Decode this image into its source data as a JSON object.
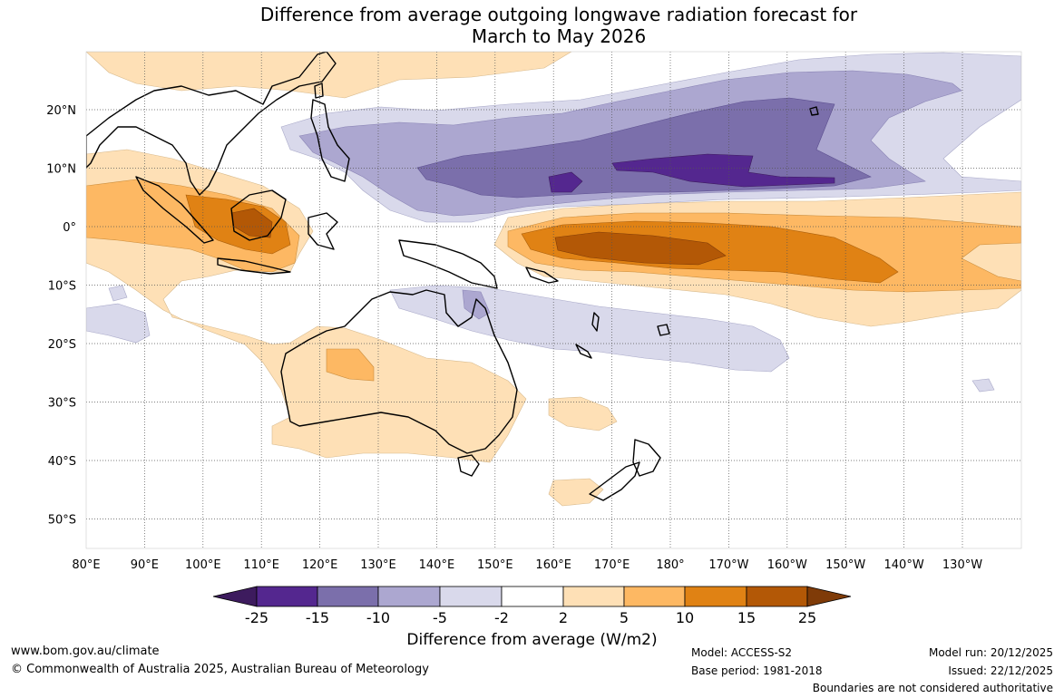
{
  "title": {
    "line1": "Difference from average outgoing longwave radiation forecast for",
    "line2": "March to May 2026"
  },
  "map": {
    "lon_ticks": [
      "80°E",
      "90°E",
      "100°E",
      "110°E",
      "120°E",
      "130°E",
      "140°E",
      "150°E",
      "160°E",
      "170°E",
      "180°",
      "170°W",
      "160°W",
      "150°W",
      "140°W",
      "130°W"
    ],
    "lat_ticks": [
      "20°N",
      "10°N",
      "0°",
      "10°S",
      "20°S",
      "30°S",
      "40°S",
      "50°S"
    ],
    "colors": {
      "neg25": "#3d1b5e",
      "neg15": "#54278f",
      "neg10": "#7b6fab",
      "neg5": "#aca7d0",
      "neg2": "#d9d9eb",
      "zero": "#ffffff",
      "pos2": "#fee0b6",
      "pos5": "#fdb863",
      "pos10": "#e08214",
      "pos15": "#b35806",
      "pos25": "#7f3b08"
    }
  },
  "colorbar": {
    "tick_labels": [
      "-25",
      "-15",
      "-10",
      "-5",
      "-2",
      "2",
      "5",
      "10",
      "15",
      "25"
    ],
    "title": "Difference from average (W/m2)"
  },
  "footer": {
    "website": "www.bom.gov.au/climate",
    "copyright": "© Commonwealth of Australia 2025, Australian Bureau of Meteorology",
    "model": "Model: ACCESS-S2",
    "base_period": "Base period: 1981-2018",
    "model_run": "Model run: 20/12/2025",
    "issued": "Issued: 22/12/2025",
    "disclaimer": "Boundaries are not considered authoritative"
  }
}
